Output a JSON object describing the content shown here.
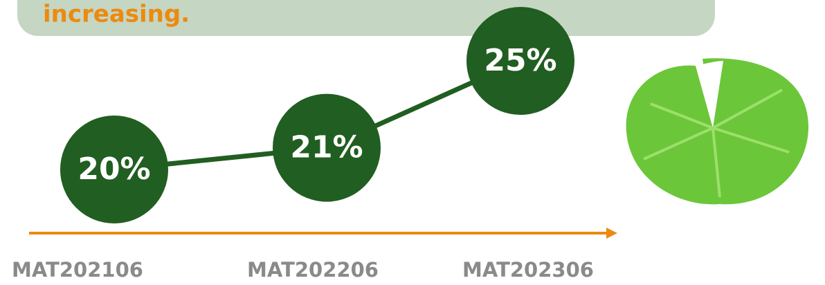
{
  "chart_data": {
    "type": "line",
    "title": "increasing.",
    "categories": [
      "MAT202106",
      "MAT202206",
      "MAT202306"
    ],
    "values": [
      20,
      21,
      25
    ],
    "value_labels": [
      "20%",
      "21%",
      "25%"
    ],
    "color": "#215e21",
    "axis_color": "#ec8a10"
  }
}
